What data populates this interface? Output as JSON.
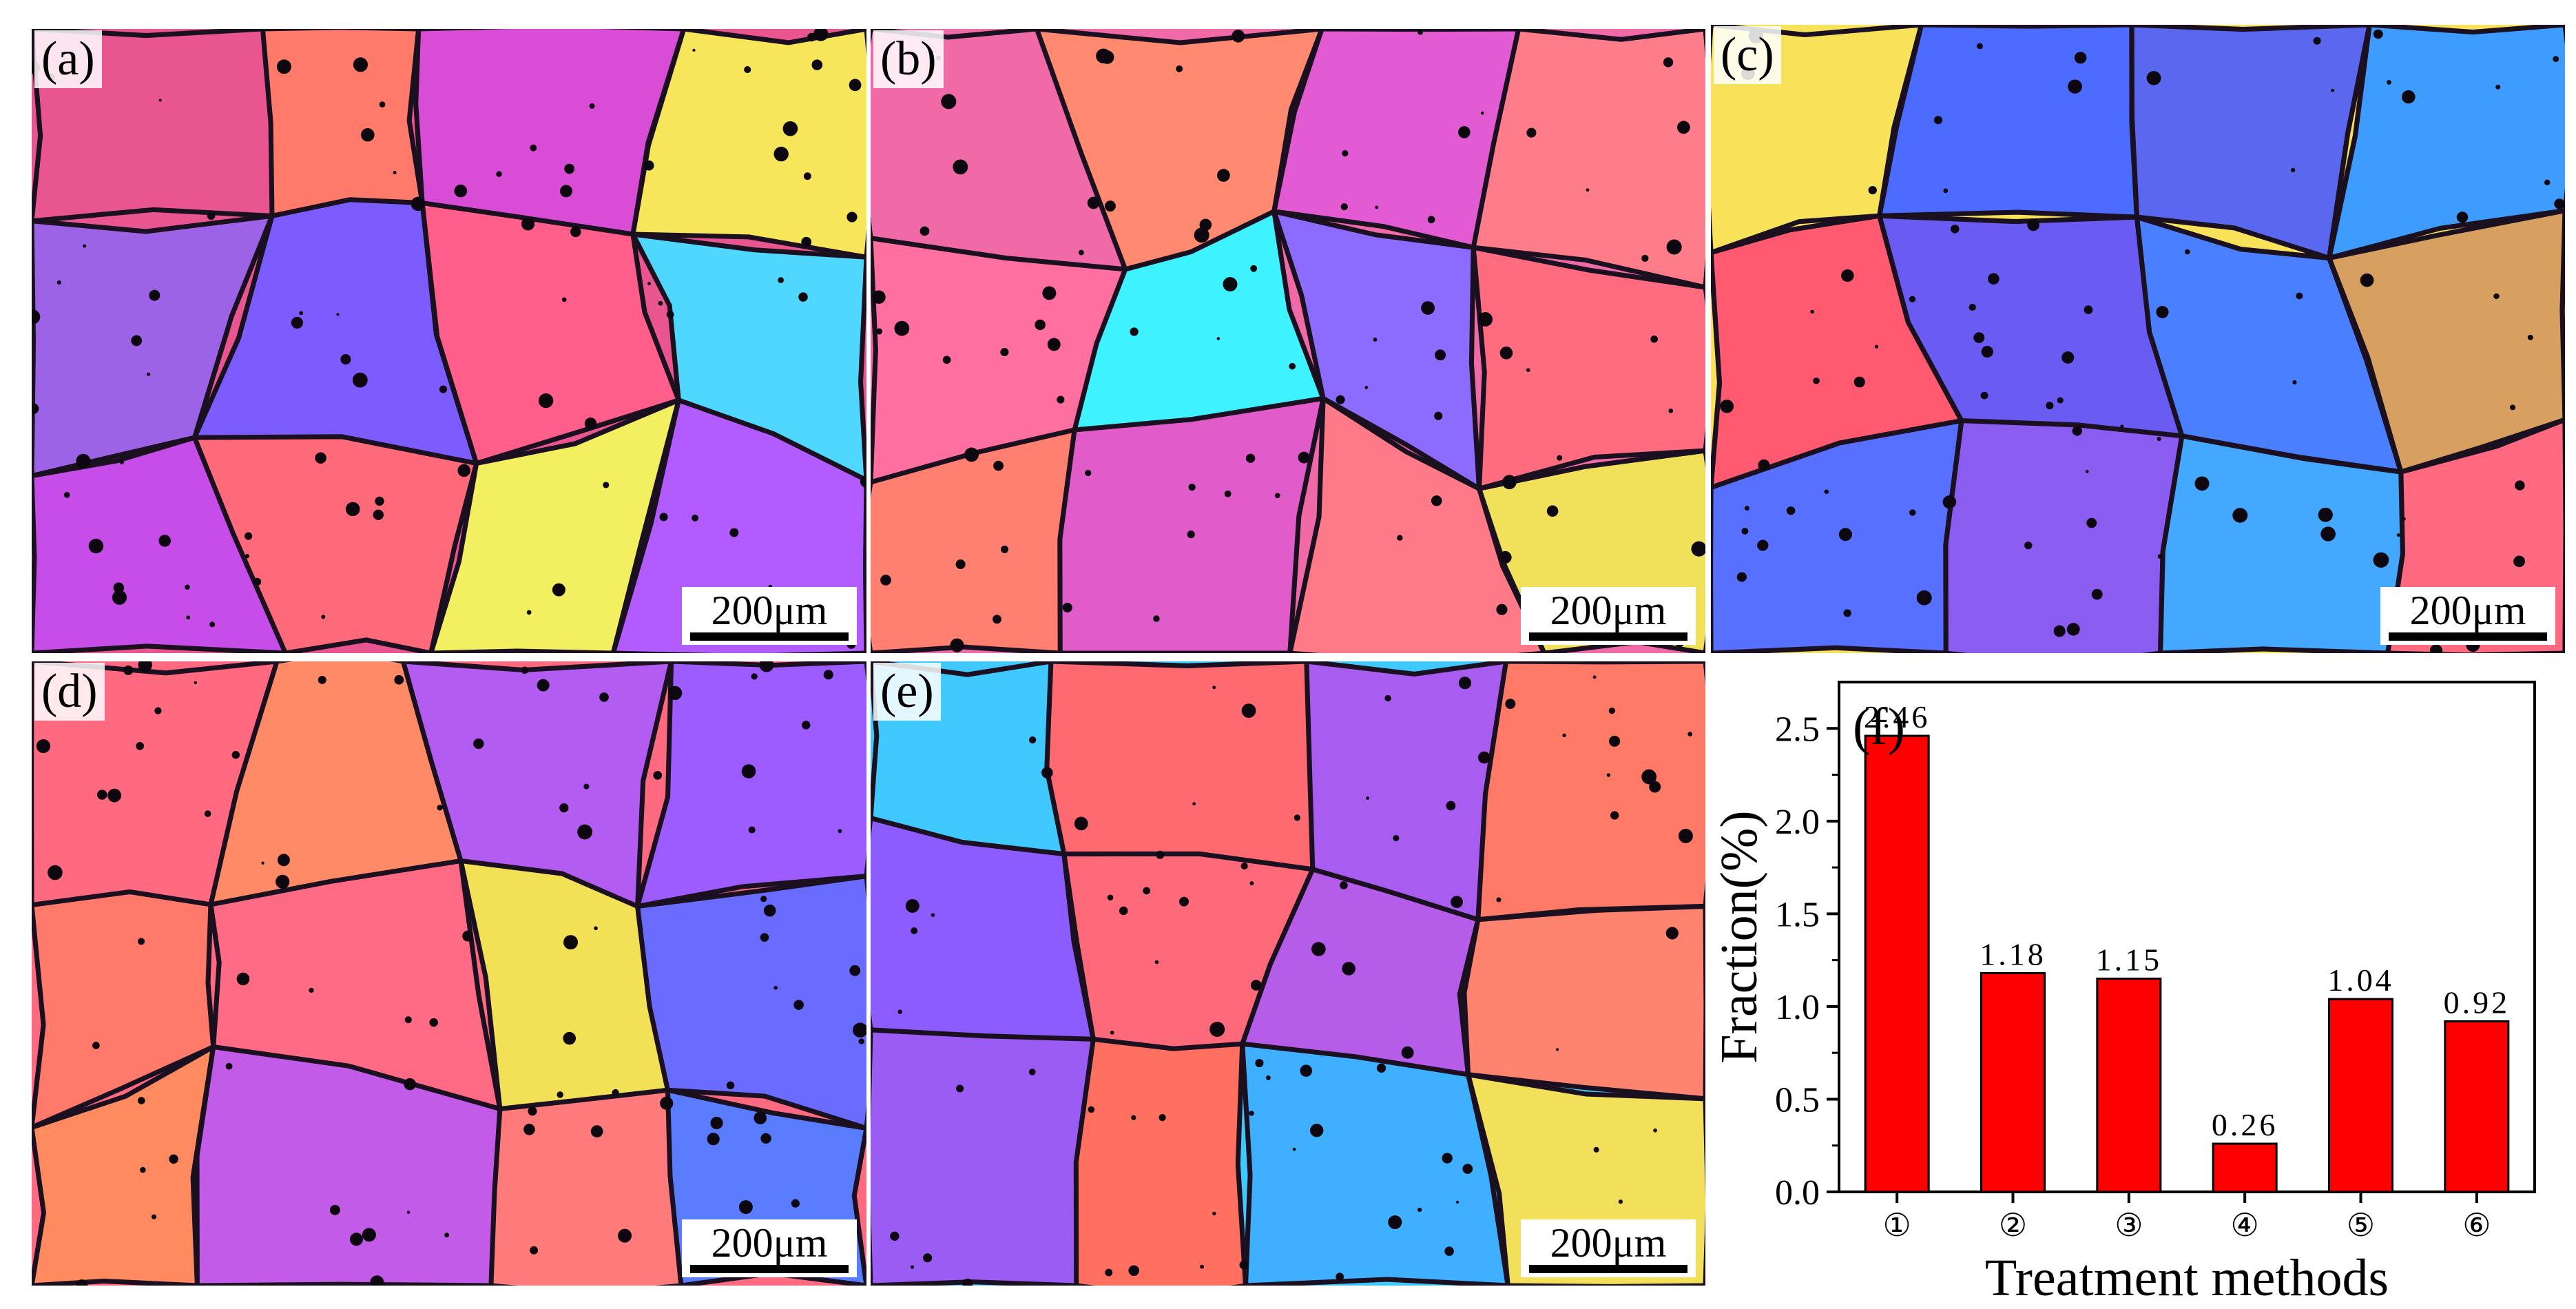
{
  "panels": [
    {
      "label": "(a)",
      "scale": "200μm",
      "colors": [
        "#e8558f",
        "#ff7a6a",
        "#d94cd6",
        "#f7e65a",
        "#9c63e6",
        "#7a5cff",
        "#ff5f8a",
        "#4fd7ff",
        "#c74de8",
        "#ff6a7a",
        "#f2f060",
        "#b25cff"
      ]
    },
    {
      "label": "(b)",
      "scale": "200μm",
      "colors": [
        "#f06aa8",
        "#ff8a70",
        "#e25bd2",
        "#ff7d8a",
        "#ff6fa0",
        "#3ff2ff",
        "#8c6cff",
        "#ff6c80",
        "#ff8070",
        "#e05cc8",
        "#ff7a88",
        "#f0e05a"
      ]
    },
    {
      "label": "(c)",
      "scale": "200μm",
      "colors": [
        "#f8e25a",
        "#4c6cff",
        "#5a68f0",
        "#3f9cff",
        "#ff5a70",
        "#6a5cf2",
        "#4a80ff",
        "#d8a060",
        "#5870ff",
        "#8a5cf0",
        "#45a8ff",
        "#ff6a80"
      ]
    },
    {
      "label": "(d)",
      "scale": "200μm",
      "colors": [
        "#ff6a80",
        "#ff8a66",
        "#b25cf2",
        "#9c5cff",
        "#ff7a6a",
        "#ff6a84",
        "#f2e056",
        "#6a6cff",
        "#ff8a60",
        "#c25ce8",
        "#ff7a7a",
        "#5a7cff"
      ]
    },
    {
      "label": "(e)",
      "scale": "200μm",
      "colors": [
        "#3fc9ff",
        "#ff6a70",
        "#a85cf0",
        "#ff7a66",
        "#8c5cff",
        "#ff6a7a",
        "#b55ce8",
        "#ff8470",
        "#9a5cf2",
        "#ff7060",
        "#3fb0ff",
        "#f2e05a"
      ]
    }
  ],
  "chart_data": {
    "type": "bar",
    "panel_label": "(f)",
    "categories": [
      "①",
      "②",
      "③",
      "④",
      "⑤",
      "⑥"
    ],
    "values": [
      2.46,
      1.18,
      1.15,
      0.26,
      1.04,
      0.92
    ],
    "value_labels": [
      "2.46",
      "1.18",
      "1.15",
      "0.26",
      "1.04",
      "0.92"
    ],
    "ylim": [
      0,
      2.75
    ],
    "yticks": [
      0.0,
      0.5,
      1.0,
      1.5,
      2.0,
      2.5
    ],
    "ytick_labels": [
      "0.0",
      "0.5",
      "1.0",
      "1.5",
      "2.0",
      "2.5"
    ],
    "xlabel": "Treatment methods",
    "ylabel": "Fraction(%)",
    "bar_color": "#ff0000",
    "grid": false
  }
}
